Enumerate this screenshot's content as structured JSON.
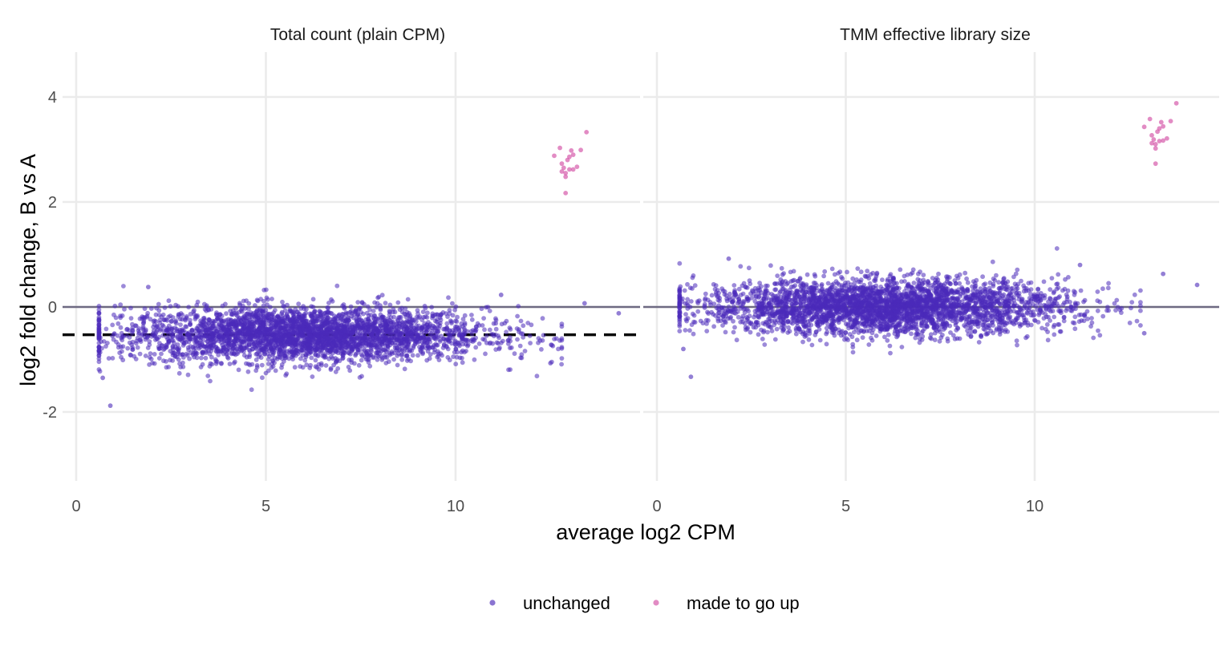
{
  "chart_data": {
    "type": "scatter",
    "xlabel": "average log2 CPM",
    "ylabel": "log2 fold change, B vs A",
    "xlim": [
      -0.2,
      15
    ],
    "ylim": [
      -3.4,
      4.9
    ],
    "x_ticks": [
      0,
      5,
      10
    ],
    "y_ticks": [
      -2,
      0,
      2,
      4
    ],
    "x_tick_labels": [
      "0",
      "5",
      "10"
    ],
    "y_tick_labels": [
      "-2",
      "0",
      "2",
      "4"
    ],
    "grid": true,
    "legend_position": "bottom",
    "colors": {
      "unchanged": "#4b2ab9",
      "made_to_go_up": "#d24fa4",
      "zero_line": "#6e6a82",
      "ref_line": "#000000"
    },
    "legend": [
      {
        "key": "unchanged",
        "label": "unchanged",
        "color": "#4b2ab9"
      },
      {
        "key": "made_to_go_up",
        "label": "made to go up",
        "color": "#d24fa4"
      }
    ],
    "panels": [
      {
        "title": "Total count (plain CPM)",
        "zero_line": 0,
        "dashed_line": -0.53,
        "unchanged_cloud": {
          "n_points": 3400,
          "x_range": [
            0.6,
            14.3
          ],
          "center_y": -0.53,
          "spread_sd": 0.26
        },
        "unchanged_outliers": [
          {
            "x": 0.9,
            "y": -1.88
          },
          {
            "x": 12.5,
            "y": -1.07
          },
          {
            "x": 13.4,
            "y": 0.07
          },
          {
            "x": 14.3,
            "y": -0.12
          },
          {
            "x": 11.2,
            "y": 0.23
          },
          {
            "x": 0.7,
            "y": -1.35
          },
          {
            "x": 1.9,
            "y": 0.38
          }
        ],
        "made_to_go_up": [
          {
            "x": 12.9,
            "y": 2.17
          },
          {
            "x": 12.9,
            "y": 2.55
          },
          {
            "x": 13.0,
            "y": 2.62
          },
          {
            "x": 12.8,
            "y": 2.73
          },
          {
            "x": 13.1,
            "y": 2.9
          },
          {
            "x": 12.6,
            "y": 2.88
          },
          {
            "x": 13.2,
            "y": 2.67
          },
          {
            "x": 12.95,
            "y": 2.8
          },
          {
            "x": 13.05,
            "y": 2.98
          },
          {
            "x": 12.75,
            "y": 3.03
          },
          {
            "x": 12.85,
            "y": 2.65
          },
          {
            "x": 13.3,
            "y": 2.99
          },
          {
            "x": 13.45,
            "y": 3.33
          },
          {
            "x": 12.9,
            "y": 2.48
          },
          {
            "x": 13.1,
            "y": 2.62
          },
          {
            "x": 12.8,
            "y": 2.58
          },
          {
            "x": 13.0,
            "y": 2.86
          }
        ]
      },
      {
        "title": "TMM effective library size",
        "zero_line": 0,
        "unchanged_cloud": {
          "n_points": 3400,
          "x_range": [
            0.6,
            14.3
          ],
          "center_y": 0.0,
          "spread_sd": 0.26
        },
        "unchanged_outliers": [
          {
            "x": 0.9,
            "y": -1.33
          },
          {
            "x": 12.9,
            "y": -0.5
          },
          {
            "x": 13.4,
            "y": 0.63
          },
          {
            "x": 14.3,
            "y": 0.42
          },
          {
            "x": 11.2,
            "y": 0.8
          },
          {
            "x": 0.7,
            "y": -0.8
          },
          {
            "x": 1.9,
            "y": 0.92
          }
        ],
        "made_to_go_up": [
          {
            "x": 13.2,
            "y": 2.73
          },
          {
            "x": 13.2,
            "y": 3.1
          },
          {
            "x": 13.3,
            "y": 3.16
          },
          {
            "x": 13.1,
            "y": 3.27
          },
          {
            "x": 13.4,
            "y": 3.44
          },
          {
            "x": 12.9,
            "y": 3.43
          },
          {
            "x": 13.5,
            "y": 3.21
          },
          {
            "x": 13.25,
            "y": 3.34
          },
          {
            "x": 13.35,
            "y": 3.52
          },
          {
            "x": 13.05,
            "y": 3.58
          },
          {
            "x": 13.15,
            "y": 3.19
          },
          {
            "x": 13.6,
            "y": 3.54
          },
          {
            "x": 13.75,
            "y": 3.88
          },
          {
            "x": 13.2,
            "y": 3.02
          },
          {
            "x": 13.4,
            "y": 3.17
          },
          {
            "x": 13.1,
            "y": 3.12
          },
          {
            "x": 13.3,
            "y": 3.4
          }
        ]
      }
    ]
  }
}
